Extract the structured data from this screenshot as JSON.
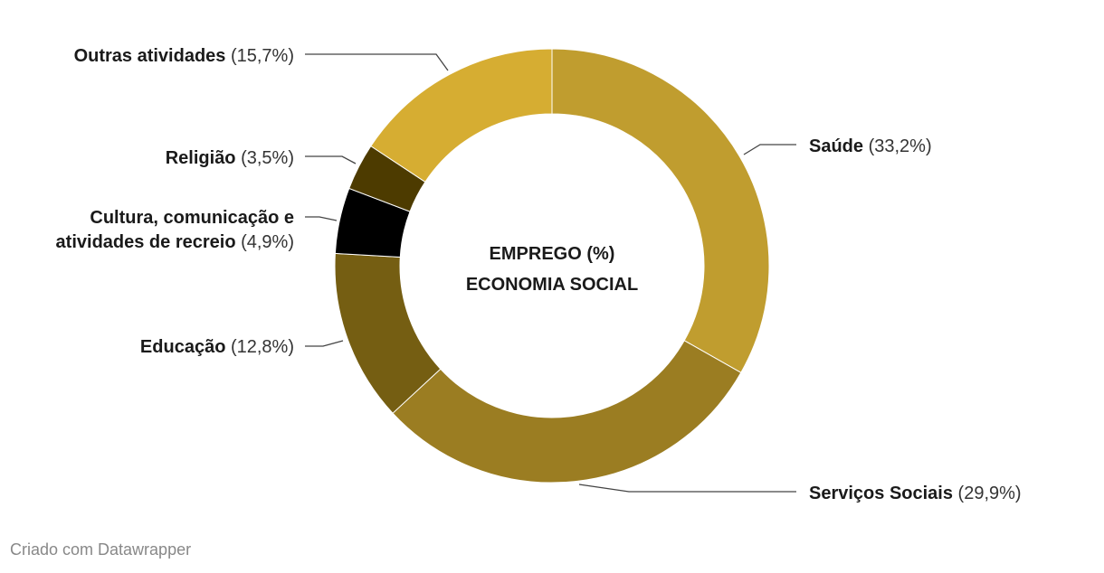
{
  "chart_data": {
    "type": "pie",
    "subtype": "donut",
    "center_text": [
      "EMPREGO (%)",
      "ECONOMIA SOCIAL"
    ],
    "slices": [
      {
        "name": "Saúde",
        "value": 33.2,
        "value_label": "(33,2%)",
        "color": "#c09d2f"
      },
      {
        "name": "Serviços Sociais",
        "value": 29.9,
        "value_label": "(29,9%)",
        "color": "#9b7d22"
      },
      {
        "name": "Educação",
        "value": 12.8,
        "value_label": "(12,8%)",
        "color": "#755e12"
      },
      {
        "name": "Cultura, comunicação e atividades de recreio",
        "name_lines": [
          "Cultura, comunicação e",
          "atividades de recreio"
        ],
        "value": 4.9,
        "value_label": "(4,9%)",
        "color": "#000000"
      },
      {
        "name": "Religião",
        "value": 3.5,
        "value_label": "(3,5%)",
        "color": "#4d3b00"
      },
      {
        "name": "Outras atividades",
        "value": 15.7,
        "value_label": "(15,7%)",
        "color": "#d6ad32"
      }
    ]
  },
  "footer": {
    "credit": "Criado com Datawrapper"
  }
}
